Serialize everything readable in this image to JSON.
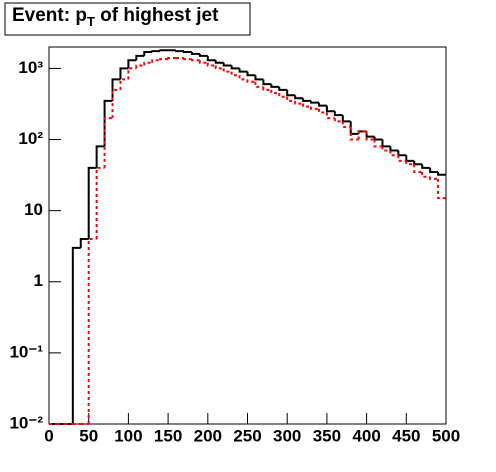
{
  "chart_data": {
    "type": "histogram",
    "title": [
      "Event: p",
      "T",
      " of highest jet"
    ],
    "bins": [
      0,
      10,
      20,
      30,
      40,
      50,
      60,
      70,
      80,
      90,
      100,
      110,
      120,
      130,
      140,
      150,
      160,
      170,
      180,
      190,
      200,
      210,
      220,
      230,
      240,
      250,
      260,
      270,
      280,
      290,
      300,
      310,
      320,
      330,
      340,
      350,
      360,
      370,
      380,
      390,
      400,
      410,
      420,
      430,
      440,
      450,
      460,
      470,
      480,
      490,
      500
    ],
    "series": [
      {
        "color": "#000000",
        "dash": false,
        "values": [
          0,
          0,
          0,
          3,
          4,
          40,
          80,
          350,
          700,
          1000,
          1300,
          1500,
          1700,
          1750,
          1800,
          1800,
          1750,
          1700,
          1600,
          1500,
          1300,
          1200,
          1100,
          1000,
          900,
          800,
          700,
          600,
          550,
          500,
          420,
          380,
          350,
          330,
          300,
          250,
          220,
          180,
          120,
          130,
          110,
          100,
          80,
          70,
          60,
          50,
          45,
          40,
          35,
          32
        ]
      },
      {
        "color": "#ff0000",
        "dash": true,
        "values": [
          0,
          0,
          0,
          0,
          0,
          4,
          40,
          200,
          500,
          700,
          1000,
          1100,
          1200,
          1300,
          1350,
          1400,
          1400,
          1350,
          1300,
          1200,
          1100,
          1000,
          900,
          800,
          700,
          650,
          550,
          500,
          450,
          400,
          350,
          320,
          290,
          270,
          240,
          200,
          180,
          150,
          100,
          130,
          100,
          80,
          70,
          60,
          50,
          45,
          35,
          30,
          28,
          15
        ]
      }
    ],
    "xlim": [
      0,
      500
    ],
    "xticks": [
      0,
      50,
      100,
      150,
      200,
      250,
      300,
      350,
      400,
      450,
      500
    ],
    "ylim": [
      0.01,
      2000
    ],
    "log_y": true,
    "yticks": [
      {
        "value": 0.01,
        "label": "10⁻²"
      },
      {
        "value": 0.1,
        "label": "10⁻¹"
      },
      1,
      10,
      {
        "value": 100,
        "label": "10²"
      },
      {
        "value": 1000,
        "label": "10³"
      }
    ]
  }
}
